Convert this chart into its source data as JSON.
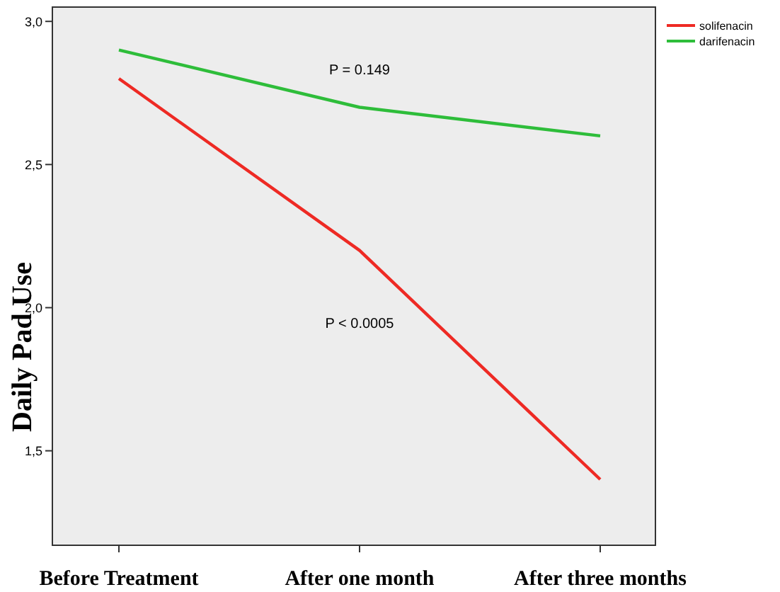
{
  "chart_data": {
    "type": "line",
    "ylabel": "Daily Pad Use",
    "categories": [
      "Before Treatment",
      "After one month",
      "After three months"
    ],
    "series": [
      {
        "name": "solifenacin",
        "color": "#ee2a24",
        "values": [
          2.8,
          2.2,
          1.4
        ]
      },
      {
        "name": "darifenacin",
        "color": "#2ebd3a",
        "values": [
          2.9,
          2.7,
          2.6
        ]
      }
    ],
    "ylim": [
      1.17,
      3.05
    ],
    "yticks": [
      {
        "value": 1.5,
        "label": "1,5"
      },
      {
        "value": 2.0,
        "label": "2,0"
      },
      {
        "value": 2.5,
        "label": "2,5"
      },
      {
        "value": 3.0,
        "label": "3,0"
      }
    ],
    "annotations": [
      "P = 0.149",
      "P < 0.0005"
    ],
    "legend": "top right",
    "grid": false,
    "marker": "none",
    "line_style": "solid"
  }
}
